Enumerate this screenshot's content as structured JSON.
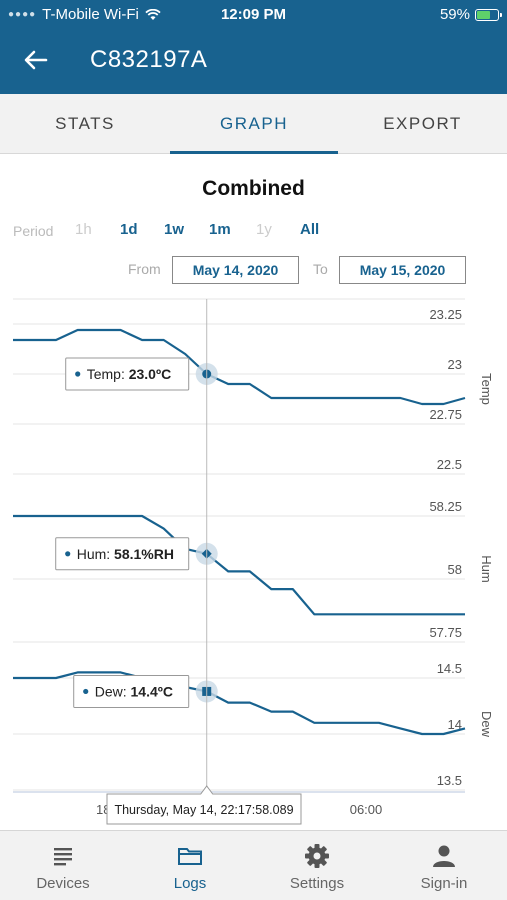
{
  "status_bar": {
    "carrier": "T-Mobile Wi-Fi",
    "time": "12:09 PM",
    "battery": "59%",
    "battery_level": 0.59,
    "wifi_icon": "wifi-icon",
    "battery_icon": "battery-charging-icon"
  },
  "header": {
    "title": "C832197A",
    "back_icon": "back-arrow-icon",
    "color": "#18628f"
  },
  "tabs": [
    {
      "label": "STATS",
      "active": false
    },
    {
      "label": "GRAPH",
      "active": true
    },
    {
      "label": "EXPORT",
      "active": false
    }
  ],
  "graph": {
    "title": "Combined",
    "period_label": "Period",
    "periods": [
      {
        "label": "1h",
        "enabled": false
      },
      {
        "label": "1d",
        "enabled": true
      },
      {
        "label": "1w",
        "enabled": true
      },
      {
        "label": "1m",
        "enabled": true
      },
      {
        "label": "1y",
        "enabled": false
      },
      {
        "label": "All",
        "enabled": true
      }
    ],
    "from_label": "From",
    "from_date": "May 14, 2020",
    "to_label": "To",
    "to_date": "May 15, 2020"
  },
  "chart_data": [
    {
      "type": "line",
      "name": "Temp",
      "ylabel": "Temp",
      "yticks": [
        "23.25",
        "23",
        "22.75",
        "22.5"
      ],
      "ylim": [
        22.5,
        23.25
      ],
      "x": [
        0,
        1,
        2,
        3,
        4,
        5,
        6,
        7,
        8,
        9,
        10,
        11,
        12,
        13,
        14,
        15,
        16,
        17,
        18,
        19,
        20,
        21
      ],
      "values": [
        23.17,
        23.17,
        23.17,
        23.22,
        23.22,
        23.22,
        23.17,
        23.17,
        23.1,
        23.0,
        22.95,
        22.95,
        22.88,
        22.88,
        22.88,
        22.88,
        22.88,
        22.88,
        22.88,
        22.85,
        22.85,
        22.88
      ],
      "tooltip": {
        "label": "Temp:",
        "value": "23.0ºC"
      }
    },
    {
      "type": "line",
      "name": "Hum",
      "ylabel": "Hum",
      "yticks": [
        "58.25",
        "58",
        "57.75"
      ],
      "ylim": [
        57.75,
        58.25
      ],
      "x": [
        0,
        1,
        2,
        3,
        4,
        5,
        6,
        7,
        8,
        9,
        10,
        11,
        12,
        13,
        14,
        15,
        16,
        17,
        18,
        19,
        20,
        21
      ],
      "values": [
        58.25,
        58.25,
        58.25,
        58.25,
        58.25,
        58.25,
        58.25,
        58.2,
        58.12,
        58.1,
        58.03,
        58.03,
        57.96,
        57.96,
        57.86,
        57.86,
        57.86,
        57.86,
        57.86,
        57.86,
        57.86,
        57.86
      ],
      "tooltip": {
        "label": "Hum:",
        "value": "58.1%RH"
      }
    },
    {
      "type": "line",
      "name": "Dew",
      "ylabel": "Dew",
      "yticks": [
        "14.5",
        "14",
        "13.5"
      ],
      "ylim": [
        13.5,
        14.5
      ],
      "x": [
        0,
        1,
        2,
        3,
        4,
        5,
        6,
        7,
        8,
        9,
        10,
        11,
        12,
        13,
        14,
        15,
        16,
        17,
        18,
        19,
        20,
        21
      ],
      "values": [
        14.5,
        14.5,
        14.5,
        14.55,
        14.55,
        14.55,
        14.5,
        14.5,
        14.42,
        14.38,
        14.28,
        14.28,
        14.2,
        14.2,
        14.1,
        14.1,
        14.1,
        14.1,
        14.05,
        14.0,
        14.0,
        14.05
      ],
      "tooltip": {
        "label": "Dew:",
        "value": "14.4ºC"
      }
    }
  ],
  "x_axis": {
    "ticks": [
      "18",
      "06:00"
    ],
    "crosshair_label": "Thursday, May 14, 22:17:58.089",
    "cursor_index": 9
  },
  "colors": {
    "line": "#18628f",
    "accent": "#18628f",
    "grid": "#e4e4e4"
  },
  "bottom_nav": [
    {
      "label": "Devices",
      "icon": "list-icon",
      "active": false
    },
    {
      "label": "Logs",
      "icon": "folder-icon",
      "active": true
    },
    {
      "label": "Settings",
      "icon": "gear-icon",
      "active": false
    },
    {
      "label": "Sign-in",
      "icon": "person-icon",
      "active": false
    }
  ]
}
